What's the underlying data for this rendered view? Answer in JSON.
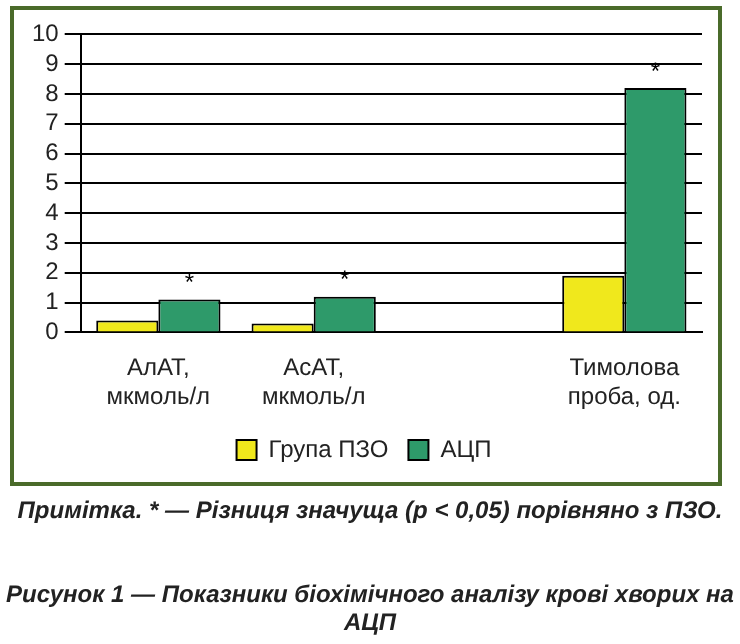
{
  "chart_data": {
    "type": "bar",
    "title": "Рисунок 1 — Показники біохімічного аналізу крові хворих на АЦП",
    "categories": [
      "АлАТ, мкмоль/л",
      "АсАТ, мкмоль/л",
      null,
      "Тимолова проба, од."
    ],
    "series": [
      {
        "name": "Група ПЗО",
        "color": "#f0e81c",
        "values": [
          0.4,
          0.3,
          null,
          1.9
        ]
      },
      {
        "name": "АЦП",
        "color": "#2e9a6a",
        "values": [
          1.1,
          1.2,
          null,
          8.2
        ]
      }
    ],
    "ylim": [
      0,
      10
    ],
    "yticks": [
      0,
      1,
      2,
      3,
      4,
      5,
      6,
      7,
      8,
      9,
      10
    ],
    "grid": "y",
    "legend": "bottom",
    "annotations": [
      {
        "text": "*",
        "x": "АлАТ, мкмоль/л",
        "y": 1.1
      },
      {
        "text": "*",
        "x": "АсАТ, мкмоль/л",
        "y": 1.2
      },
      {
        "text": "*",
        "x": "Тимолова проба, од.",
        "y": 8.2
      },
      "Примітка. * — Різниця значуща (p < 0,05) порівняно з ПЗО."
    ]
  }
}
